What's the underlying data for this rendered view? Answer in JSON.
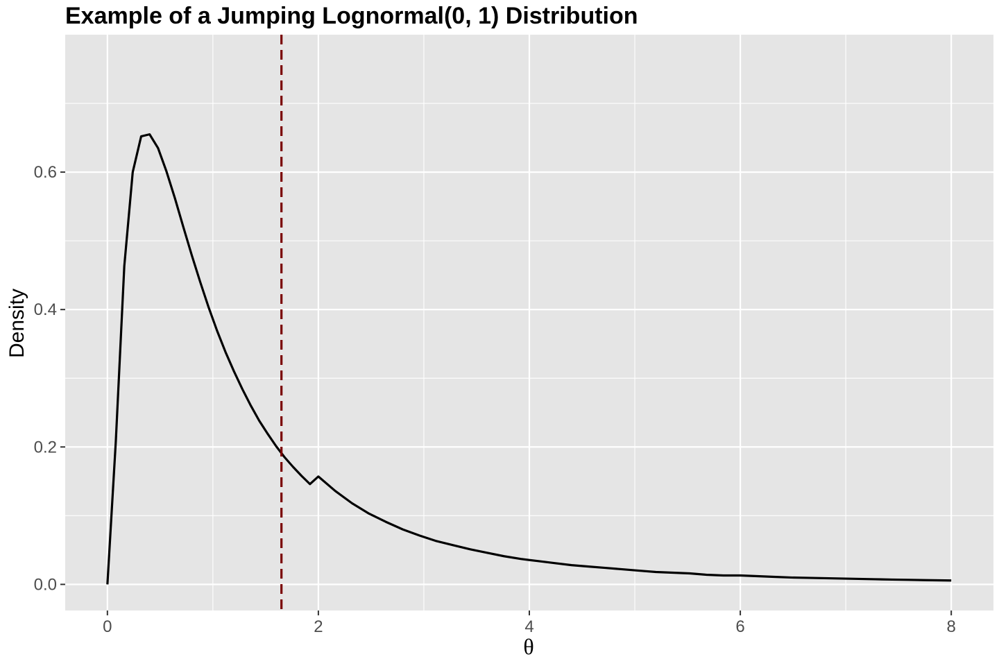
{
  "chart_data": {
    "type": "line",
    "title": "Example of a Jumping Lognormal(0, 1) Distribution",
    "xlabel": "θ",
    "ylabel": "Density",
    "xlim": [
      -0.4,
      8.4
    ],
    "ylim": [
      -0.038,
      0.8
    ],
    "x_ticks": [
      0,
      2,
      4,
      6,
      8
    ],
    "x_tick_labels": [
      "0",
      "2",
      "4",
      "6",
      "8"
    ],
    "y_ticks": [
      0.0,
      0.2,
      0.4,
      0.6
    ],
    "y_tick_labels": [
      "0.0",
      "0.2",
      "0.4",
      "0.6"
    ],
    "grid": true,
    "legend": "none",
    "colors": {
      "panel_background": "#e5e5e5",
      "grid": "#ffffff",
      "line": "#000000",
      "reference_line": "#7a0000"
    },
    "series": [
      {
        "x": [
          0,
          0.08,
          0.16,
          0.24,
          0.32,
          0.4,
          0.48,
          0.56,
          0.64,
          0.72,
          0.8,
          0.88,
          0.96,
          1.04,
          1.12,
          1.2,
          1.28,
          1.36,
          1.44,
          1.52,
          1.6,
          1.68,
          1.76,
          1.84,
          1.92,
          2.0,
          2.16,
          2.32,
          2.48,
          2.64,
          2.8,
          2.96,
          3.12,
          3.28,
          3.44,
          3.6,
          3.76,
          3.92,
          4.08,
          4.24,
          4.4,
          4.56,
          4.72,
          4.88,
          5.04,
          5.2,
          5.36,
          5.52,
          5.68,
          5.84,
          6.0,
          6.16,
          6.32,
          6.48,
          6.64,
          6.8,
          6.96,
          7.12,
          7.28,
          7.44,
          7.6,
          7.76,
          8.0
        ],
        "y": [
          0.0,
          0.209,
          0.463,
          0.6,
          0.652,
          0.655,
          0.635,
          0.601,
          0.562,
          0.52,
          0.479,
          0.44,
          0.403,
          0.369,
          0.338,
          0.31,
          0.284,
          0.26,
          0.238,
          0.219,
          0.201,
          0.185,
          0.171,
          0.158,
          0.146,
          0.157,
          0.136,
          0.118,
          0.103,
          0.091,
          0.08,
          0.071,
          0.063,
          0.057,
          0.051,
          0.046,
          0.041,
          0.037,
          0.034,
          0.031,
          0.028,
          0.026,
          0.024,
          0.022,
          0.02,
          0.018,
          0.017,
          0.016,
          0.014,
          0.013,
          0.013,
          0.012,
          0.011,
          0.01,
          0.0095,
          0.009,
          0.0085,
          0.008,
          0.0075,
          0.007,
          0.0066,
          0.0062,
          0.0057
        ]
      }
    ],
    "reference_line": {
      "x": 1.65
    }
  }
}
